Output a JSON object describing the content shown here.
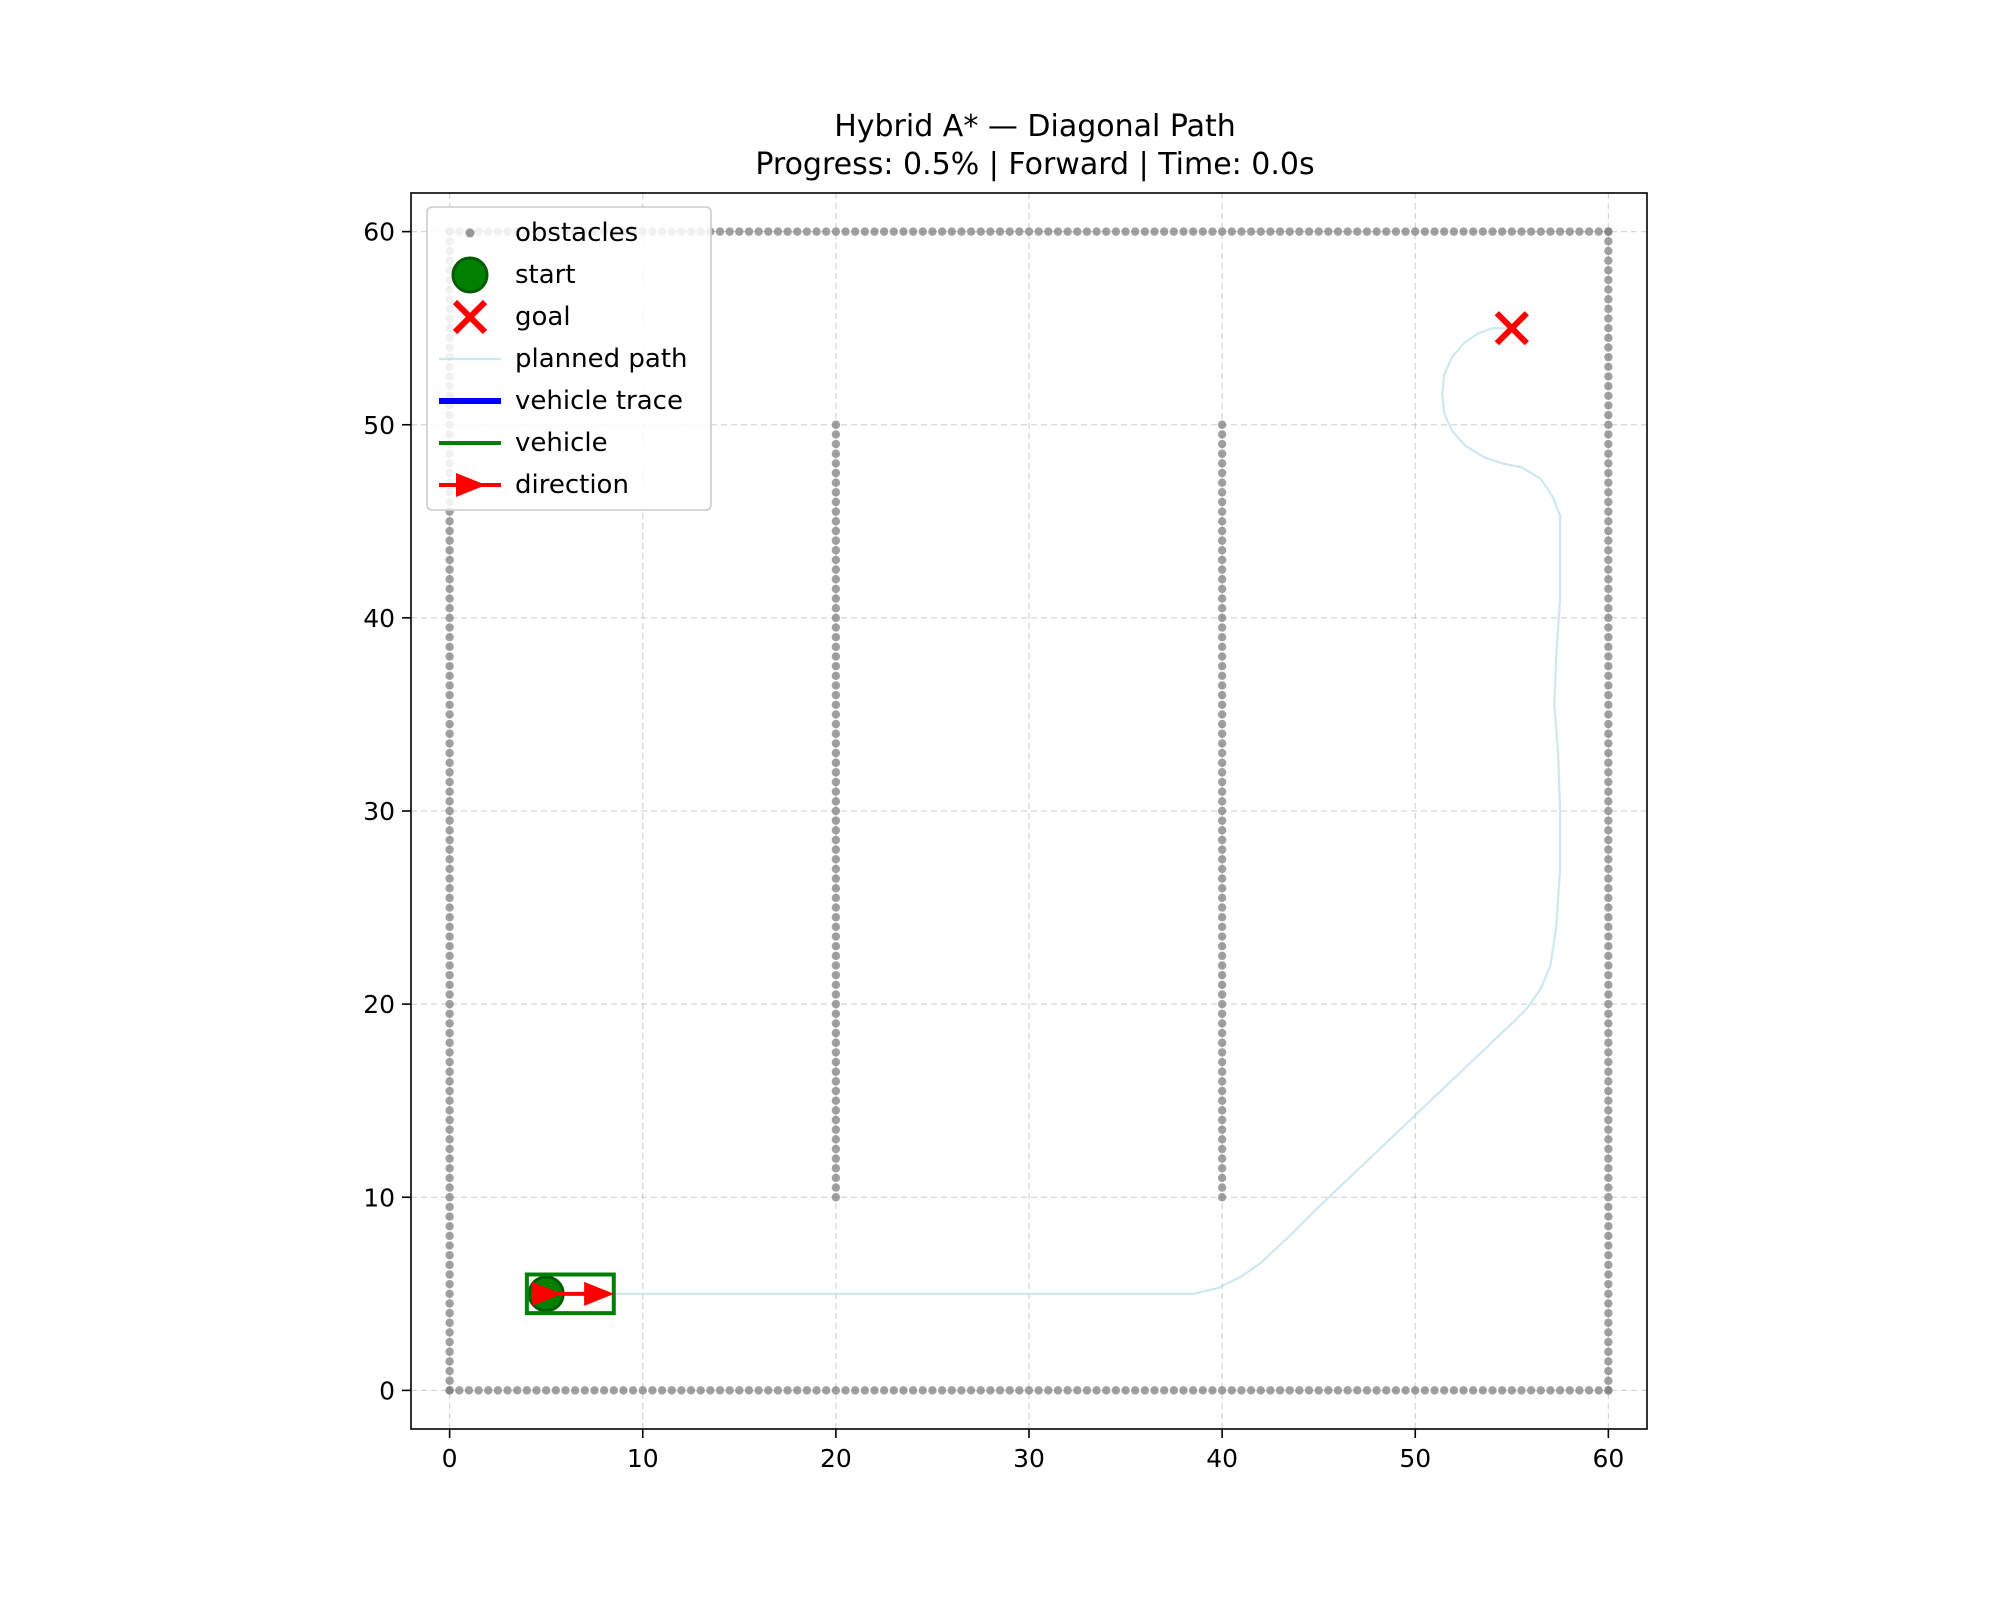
{
  "chart_data": {
    "type": "scatter",
    "title": "Hybrid A* — Diagonal Path",
    "subtitle": "Progress: 0.5% | Forward | Time: 0.0s",
    "xlabel": "",
    "ylabel": "",
    "xlim": [
      -2,
      62
    ],
    "ylim": [
      -2,
      62
    ],
    "xticks": [
      0,
      10,
      20,
      30,
      40,
      50,
      60
    ],
    "yticks": [
      0,
      10,
      20,
      30,
      40,
      50,
      60
    ],
    "xtick_labels": [
      "0",
      "10",
      "20",
      "30",
      "40",
      "50",
      "60"
    ],
    "ytick_labels": [
      "0",
      "10",
      "20",
      "30",
      "40",
      "50",
      "60"
    ],
    "grid": true,
    "aspect": "equal",
    "legend_position": "upper-left",
    "legend": [
      "obstacles",
      "start",
      "goal",
      "planned path",
      "vehicle trace",
      "vehicle",
      "direction"
    ],
    "obstacles": {
      "spacing": 0.5,
      "segments": [
        {
          "from": [
            0,
            0
          ],
          "to": [
            60,
            0
          ]
        },
        {
          "from": [
            0,
            60
          ],
          "to": [
            60,
            60
          ]
        },
        {
          "from": [
            0,
            0
          ],
          "to": [
            0,
            60
          ]
        },
        {
          "from": [
            60,
            0
          ],
          "to": [
            60,
            60
          ]
        },
        {
          "from": [
            20,
            10
          ],
          "to": [
            20,
            50
          ]
        },
        {
          "from": [
            40,
            10
          ],
          "to": [
            40,
            50
          ]
        }
      ],
      "color": "#808080"
    },
    "start": {
      "x": 5,
      "y": 5,
      "color": "#008000"
    },
    "goal": {
      "x": 55,
      "y": 55,
      "color": "#ff0000"
    },
    "planned_path": {
      "color": "#add8e6",
      "points": [
        [
          5,
          5
        ],
        [
          10,
          5
        ],
        [
          15,
          5
        ],
        [
          20,
          5
        ],
        [
          25,
          5
        ],
        [
          30,
          5
        ],
        [
          35,
          5
        ],
        [
          38.5,
          5
        ],
        [
          39.8,
          5.3
        ],
        [
          41,
          5.9
        ],
        [
          42,
          6.6
        ],
        [
          43.5,
          8
        ],
        [
          45,
          9.5
        ],
        [
          47,
          11.4
        ],
        [
          49,
          13.3
        ],
        [
          51,
          15.2
        ],
        [
          53,
          17.1
        ],
        [
          55,
          19
        ],
        [
          55.8,
          19.8
        ],
        [
          56.5,
          20.8
        ],
        [
          57,
          22
        ],
        [
          57.3,
          24
        ],
        [
          57.5,
          27
        ],
        [
          57.5,
          30
        ],
        [
          57.4,
          33
        ],
        [
          57.2,
          35.5
        ],
        [
          57.3,
          38
        ],
        [
          57.5,
          41
        ],
        [
          57.5,
          45.3
        ],
        [
          57.1,
          46.3
        ],
        [
          56.5,
          47.2
        ],
        [
          55.5,
          47.8
        ],
        [
          54.5,
          48
        ],
        [
          53.6,
          48.3
        ],
        [
          52.6,
          48.9
        ],
        [
          51.9,
          49.7
        ],
        [
          51.5,
          50.6
        ],
        [
          51.4,
          51.6
        ],
        [
          51.5,
          52.6
        ],
        [
          51.9,
          53.5
        ],
        [
          52.5,
          54.2
        ],
        [
          53.2,
          54.7
        ],
        [
          54,
          55
        ],
        [
          55,
          55
        ]
      ]
    },
    "vehicle_trace": {
      "color": "#0000ff",
      "points": [
        [
          5,
          5
        ]
      ]
    },
    "vehicle": {
      "x_min": 4,
      "x_max": 8.5,
      "y_min": 4,
      "y_max": 6,
      "color": "#008000"
    },
    "direction": {
      "from": [
        5,
        5
      ],
      "to": [
        8,
        5
      ],
      "color": "#ff0000"
    }
  }
}
